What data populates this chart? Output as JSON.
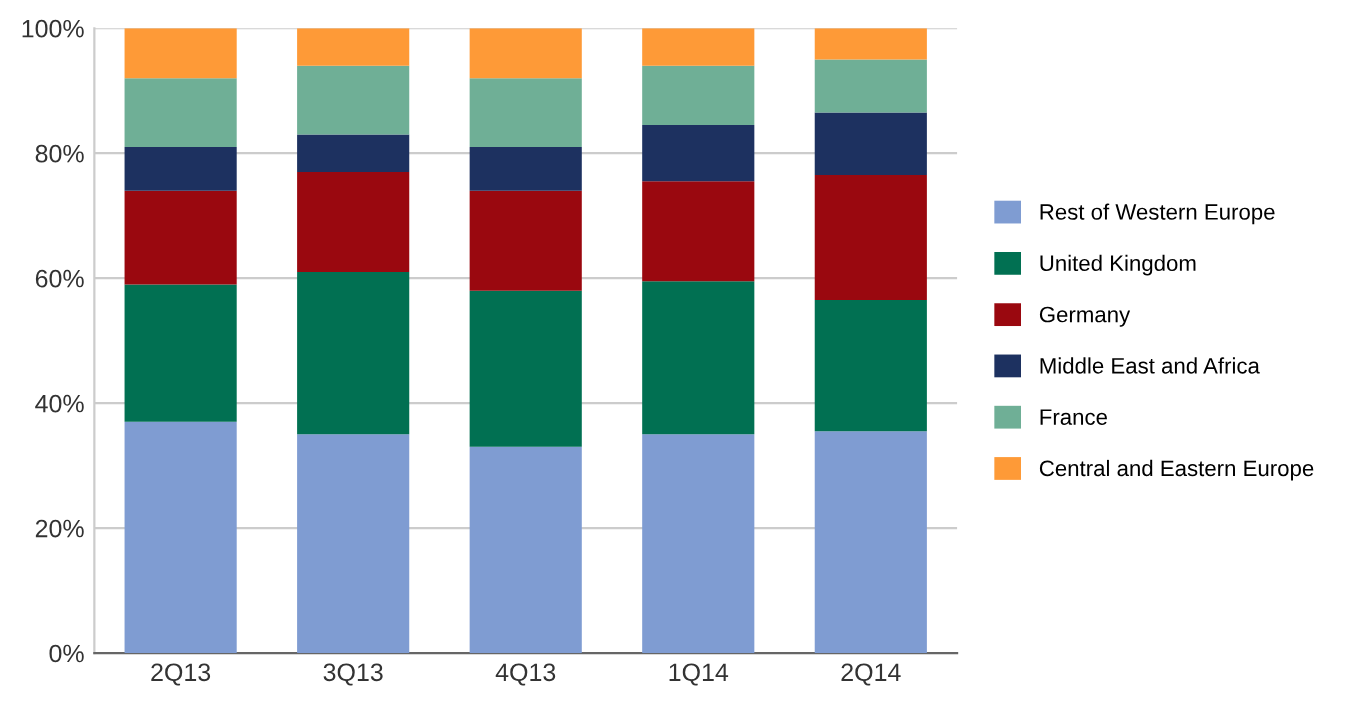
{
  "chart_data": {
    "type": "bar",
    "stacked": true,
    "categories": [
      "2Q13",
      "3Q13",
      "4Q13",
      "1Q14",
      "2Q14"
    ],
    "series": [
      {
        "name": "Rest of Western Europe",
        "color": "#7f9cd2",
        "values": [
          37,
          35,
          33,
          35,
          35.5
        ]
      },
      {
        "name": "United Kingdom",
        "color": "#017052",
        "values": [
          22,
          26,
          25,
          24.5,
          21
        ]
      },
      {
        "name": "Germany",
        "color": "#9a080f",
        "values": [
          15,
          16,
          16,
          16,
          20
        ]
      },
      {
        "name": "Middle East and Africa",
        "color": "#1d3160",
        "values": [
          7,
          6,
          7,
          9,
          10
        ]
      },
      {
        "name": "France",
        "color": "#6faf96",
        "values": [
          11,
          11,
          11,
          9.5,
          8.5
        ]
      },
      {
        "name": "Central and Eastern Europe",
        "color": "#fe9a37",
        "values": [
          8,
          6,
          8,
          6,
          5
        ]
      }
    ],
    "ylim": [
      0,
      100
    ],
    "yticks": [
      {
        "value": 0,
        "label": "0%"
      },
      {
        "value": 20,
        "label": "20%"
      },
      {
        "value": 40,
        "label": "40%"
      },
      {
        "value": 60,
        "label": "60%"
      },
      {
        "value": 80,
        "label": "80%"
      },
      {
        "value": 100,
        "label": "100%"
      }
    ],
    "grid": "y",
    "legend": "right"
  }
}
